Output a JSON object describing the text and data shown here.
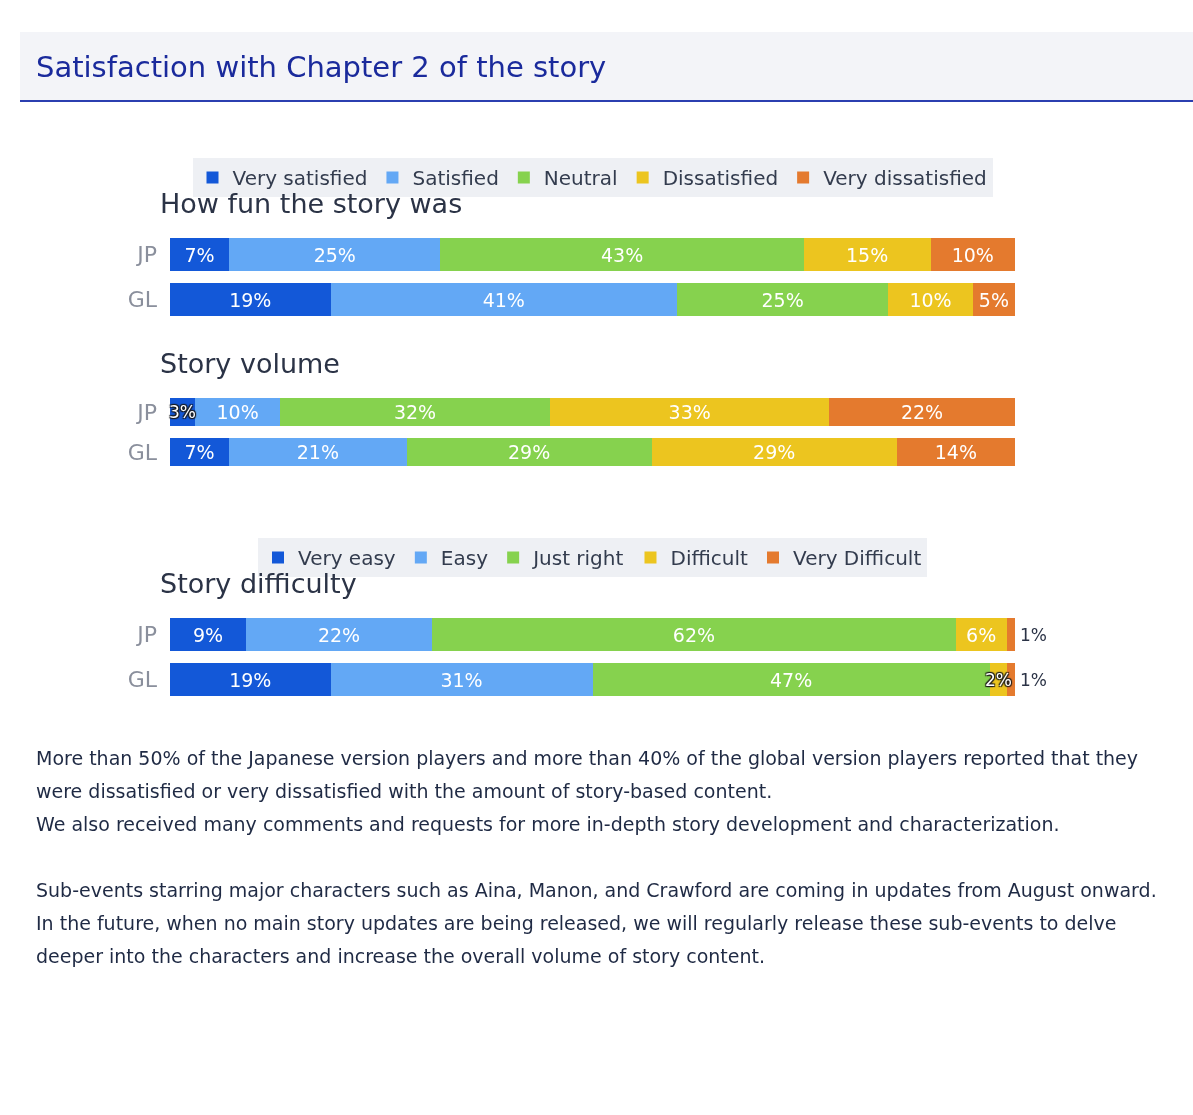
{
  "chart_data": [
    {
      "type": "bar",
      "title": "Satisfaction with Chapter 2 of the story",
      "subtitle": "How fun the story was",
      "orientation": "horizontal",
      "stacked": true,
      "categories": [
        "JP",
        "GL"
      ],
      "xlim": [
        0,
        100
      ],
      "tick_labels": "y",
      "legend": "top",
      "series": [
        {
          "name": "Very satisfied",
          "color": "#1358d8",
          "values": [
            7,
            19
          ],
          "value_labels": [
            "7%",
            "19%"
          ]
        },
        {
          "name": "Satisfied",
          "color": "#63a8f5",
          "values": [
            25,
            41
          ],
          "value_labels": [
            "25%",
            "41%"
          ]
        },
        {
          "name": "Neutral",
          "color": "#86d24e",
          "values": [
            43,
            25
          ],
          "value_labels": [
            "43%",
            "25%"
          ]
        },
        {
          "name": "Dissatisfied",
          "color": "#ecc51f",
          "values": [
            15,
            10
          ],
          "value_labels": [
            "15%",
            "10%"
          ]
        },
        {
          "name": "Very dissatisfied",
          "color": "#e47a2e",
          "values": [
            10,
            5
          ],
          "value_labels": [
            "10%",
            "5%"
          ]
        }
      ]
    },
    {
      "type": "bar",
      "title": "Story volume",
      "orientation": "horizontal",
      "stacked": true,
      "categories": [
        "JP",
        "GL"
      ],
      "xlim": [
        0,
        100
      ],
      "tick_labels": "y",
      "series": [
        {
          "color": "#1358d8",
          "values": [
            3,
            7
          ],
          "value_labels": [
            "3%",
            "7%"
          ]
        },
        {
          "color": "#63a8f5",
          "values": [
            10,
            21
          ],
          "value_labels": [
            "10%",
            "21%"
          ]
        },
        {
          "color": "#86d24e",
          "values": [
            32,
            29
          ],
          "value_labels": [
            "32%",
            "29%"
          ]
        },
        {
          "color": "#ecc51f",
          "values": [
            33,
            29
          ],
          "value_labels": [
            "33%",
            "29%"
          ]
        },
        {
          "color": "#e47a2e",
          "values": [
            22,
            14
          ],
          "value_labels": [
            "22%",
            "14%"
          ]
        }
      ]
    },
    {
      "type": "bar",
      "title": "Story difficulty",
      "orientation": "horizontal",
      "stacked": true,
      "categories": [
        "JP",
        "GL"
      ],
      "xlim": [
        0,
        100
      ],
      "tick_labels": "y",
      "legend": "top",
      "series": [
        {
          "name": "Very easy",
          "color": "#1358d8",
          "values": [
            9,
            19
          ],
          "value_labels": [
            "9%",
            "19%"
          ]
        },
        {
          "name": "Easy",
          "color": "#63a8f5",
          "values": [
            22,
            31
          ],
          "value_labels": [
            "22%",
            "31%"
          ]
        },
        {
          "name": "Just right",
          "color": "#86d24e",
          "values": [
            62,
            47
          ],
          "value_labels": [
            "62%",
            "47%"
          ]
        },
        {
          "name": "Difficult",
          "color": "#ecc51f",
          "values": [
            6,
            2
          ],
          "value_labels": [
            "6%",
            "2%"
          ]
        },
        {
          "name": "Very Difficult",
          "color": "#e47a2e",
          "values": [
            1,
            1
          ],
          "value_labels": [
            "1%",
            "1%"
          ]
        }
      ],
      "annotations": [
        "More than 50% of the Japanese version players and more than 40% of the global version players reported that they were dissatisfied or very dissatisfied with the amount of story-based content.",
        "We also received many comments and requests for more in-depth story development and characterization.",
        "Sub-events starring major characters such as Aina, Manon, and Crawford are coming in updates from August onward.",
        "In the future, when no main story updates are being released, we will regularly release these sub-events to delve deeper into the characters and increase the overall volume of story content."
      ]
    }
  ]
}
